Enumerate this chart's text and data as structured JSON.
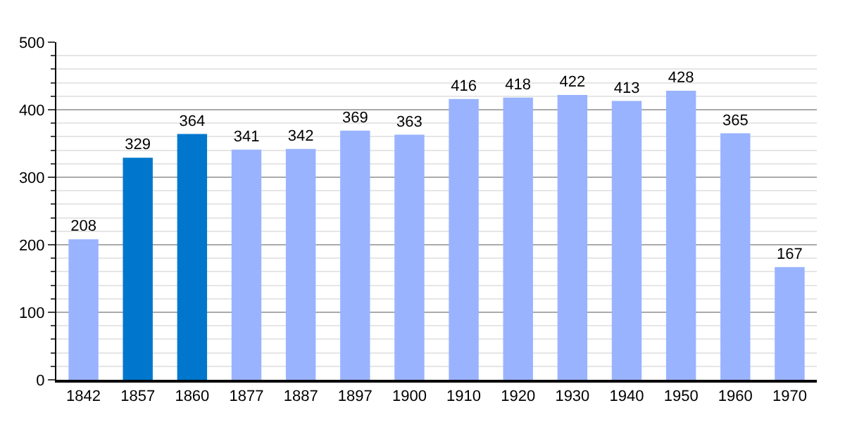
{
  "chart_data": {
    "type": "bar",
    "categories": [
      "1842",
      "1857",
      "1860",
      "1877",
      "1887",
      "1897",
      "1900",
      "1910",
      "1920",
      "1930",
      "1940",
      "1950",
      "1960",
      "1970"
    ],
    "values": [
      208,
      329,
      364,
      341,
      342,
      369,
      363,
      416,
      418,
      422,
      413,
      428,
      365,
      167
    ],
    "colors": [
      "#99b3ff",
      "#0077cc",
      "#0077cc",
      "#99b3ff",
      "#99b3ff",
      "#99b3ff",
      "#99b3ff",
      "#99b3ff",
      "#99b3ff",
      "#99b3ff",
      "#99b3ff",
      "#99b3ff",
      "#99b3ff",
      "#99b3ff"
    ],
    "ylim": [
      0,
      500
    ],
    "yticks": [
      0,
      100,
      200,
      300,
      400,
      500
    ],
    "grid": "y",
    "data_labels": true
  }
}
